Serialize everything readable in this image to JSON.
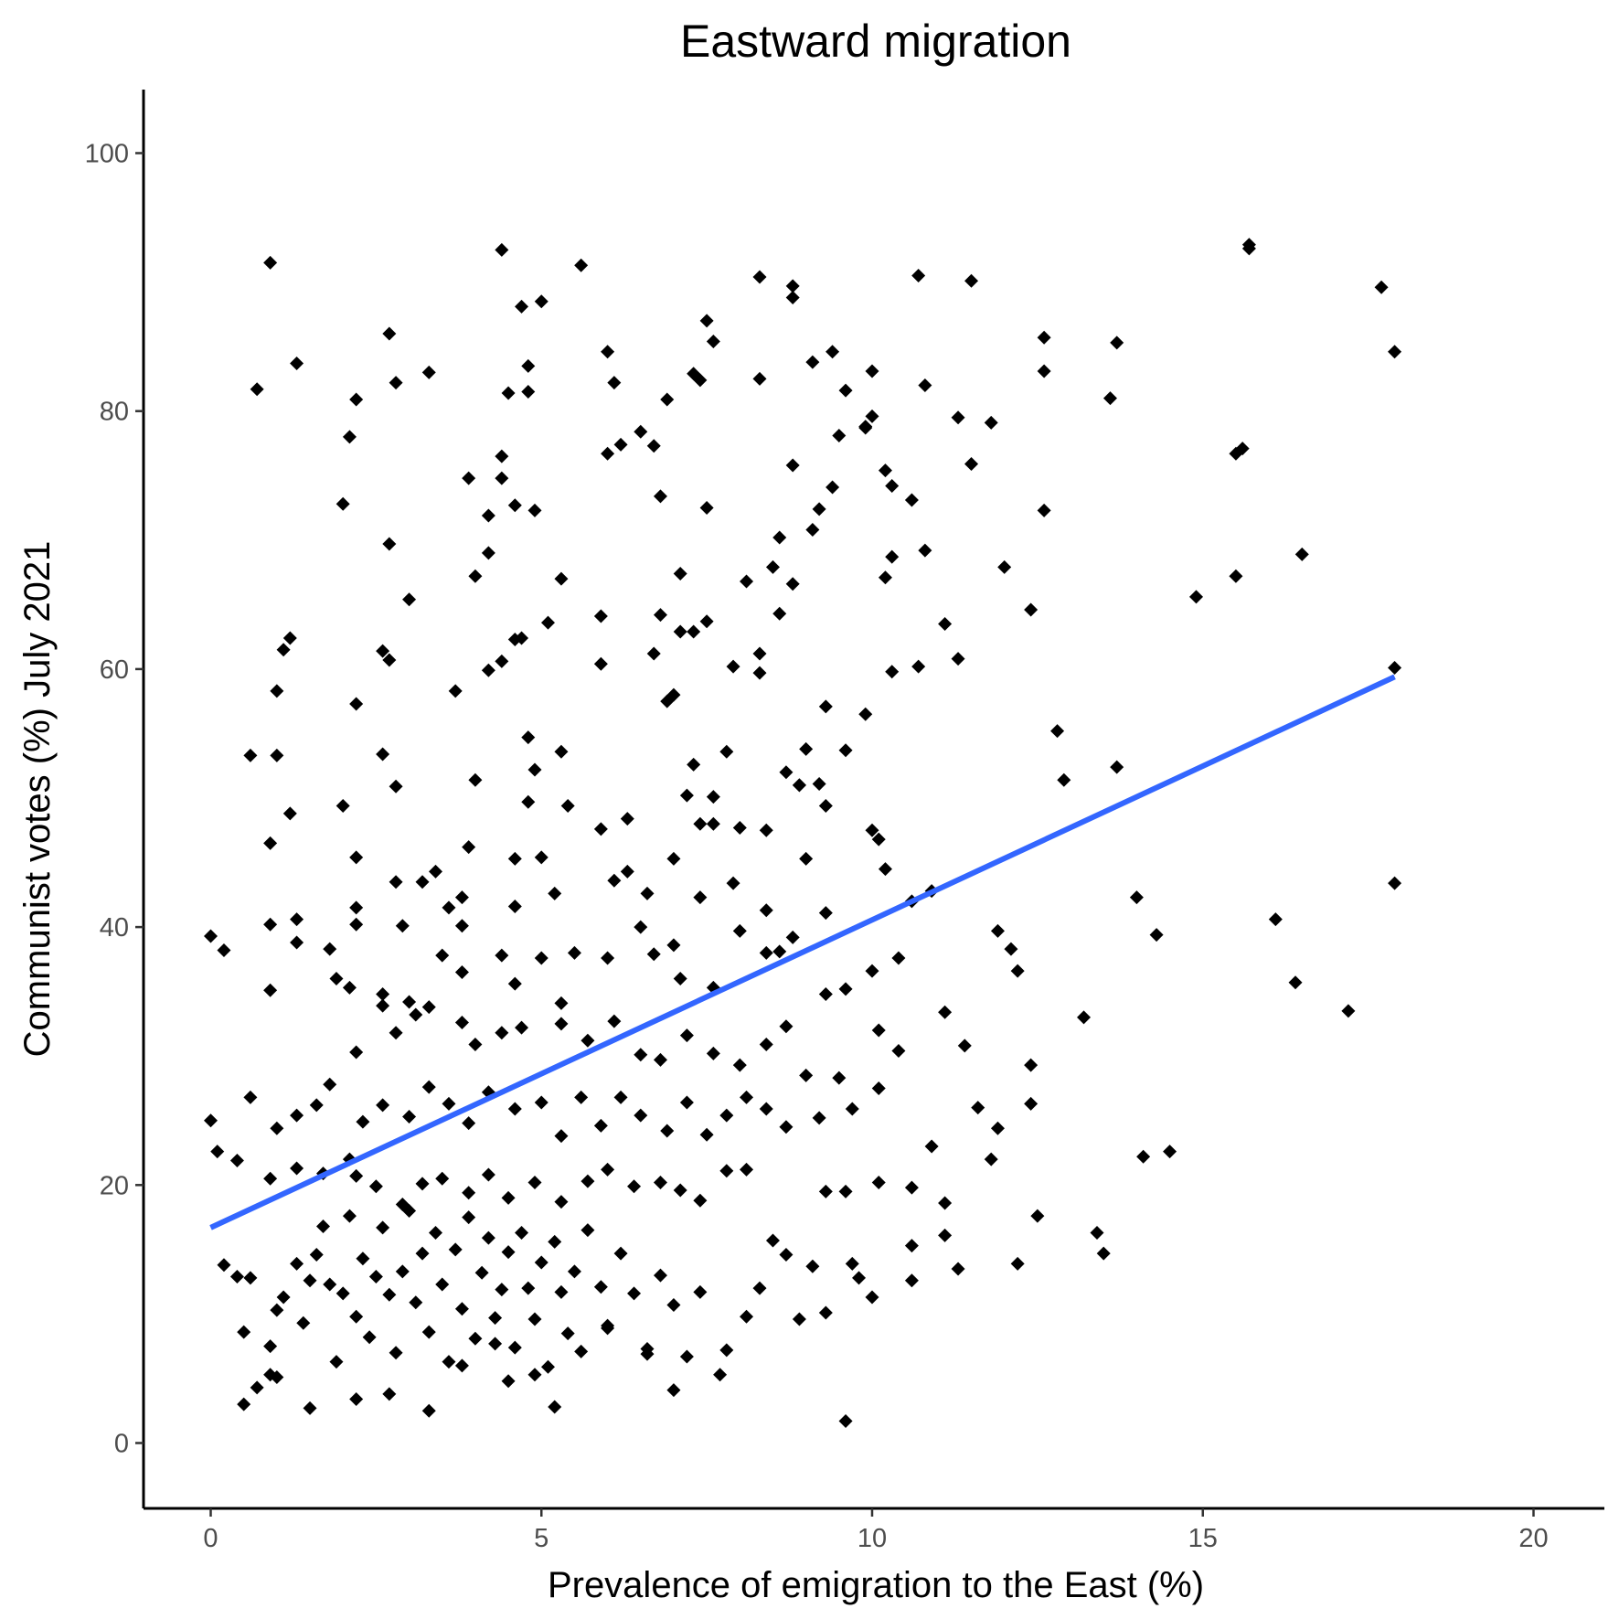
{
  "chart_data": {
    "type": "scatter",
    "title": "Eastward migration",
    "xlabel": "Prevalence of emigration to the East (%)",
    "ylabel": "Communist votes (%) July 2021",
    "xlim": [
      -1,
      21.5
    ],
    "ylim": [
      -5,
      105
    ],
    "x_ticks": [
      0,
      5,
      10,
      15,
      20
    ],
    "y_ticks": [
      0,
      20,
      40,
      60,
      80,
      100
    ],
    "grid": false,
    "legend": "none",
    "point_shape": "diamond",
    "point_color": "#000000",
    "trend_line": {
      "type": "linear",
      "x": [
        0,
        17.9
      ],
      "y": [
        16.7,
        59.4
      ],
      "color": "#3366ff"
    },
    "points": [
      [
        0.9,
        91.5
      ],
      [
        4.4,
        92.5
      ],
      [
        5.6,
        91.3
      ],
      [
        8.3,
        90.4
      ],
      [
        8.8,
        89.7
      ],
      [
        8.8,
        88.8
      ],
      [
        10.7,
        90.5
      ],
      [
        11.5,
        90.1
      ],
      [
        15.7,
        92.9
      ],
      [
        15.7,
        92.6
      ],
      [
        17.7,
        89.6
      ],
      [
        17.9,
        84.6
      ],
      [
        2.7,
        86.0
      ],
      [
        4.7,
        88.1
      ],
      [
        5.0,
        88.5
      ],
      [
        7.5,
        87.0
      ],
      [
        1.3,
        83.7
      ],
      [
        3.3,
        83.0
      ],
      [
        4.8,
        83.5
      ],
      [
        6.0,
        84.6
      ],
      [
        7.3,
        82.9
      ],
      [
        7.6,
        85.4
      ],
      [
        9.1,
        83.8
      ],
      [
        9.4,
        84.6
      ],
      [
        10.0,
        83.1
      ],
      [
        12.6,
        85.7
      ],
      [
        12.6,
        83.1
      ],
      [
        13.7,
        85.3
      ],
      [
        0.7,
        81.7
      ],
      [
        2.2,
        80.9
      ],
      [
        2.8,
        82.2
      ],
      [
        4.5,
        81.4
      ],
      [
        4.8,
        81.5
      ],
      [
        6.1,
        82.2
      ],
      [
        6.5,
        78.4
      ],
      [
        6.9,
        80.9
      ],
      [
        7.4,
        82.4
      ],
      [
        8.3,
        82.5
      ],
      [
        9.6,
        81.6
      ],
      [
        9.5,
        78.1
      ],
      [
        9.9,
        78.8
      ],
      [
        10.8,
        82.0
      ],
      [
        13.6,
        81.0
      ],
      [
        2.1,
        78.0
      ],
      [
        3.9,
        74.8
      ],
      [
        4.4,
        74.8
      ],
      [
        4.4,
        76.5
      ],
      [
        4.6,
        72.7
      ],
      [
        4.9,
        72.3
      ],
      [
        6.0,
        76.7
      ],
      [
        6.2,
        77.4
      ],
      [
        6.7,
        77.3
      ],
      [
        6.8,
        73.4
      ],
      [
        7.5,
        72.5
      ],
      [
        8.6,
        70.2
      ],
      [
        8.8,
        75.8
      ],
      [
        9.2,
        72.4
      ],
      [
        9.4,
        74.1
      ],
      [
        9.9,
        78.7
      ],
      [
        10.0,
        79.6
      ],
      [
        10.2,
        75.4
      ],
      [
        10.3,
        74.2
      ],
      [
        10.6,
        73.1
      ],
      [
        11.3,
        79.5
      ],
      [
        11.5,
        75.9
      ],
      [
        11.8,
        79.1
      ],
      [
        12.6,
        72.3
      ],
      [
        15.5,
        76.7
      ],
      [
        15.6,
        77.1
      ],
      [
        2.0,
        72.8
      ],
      [
        2.7,
        69.7
      ],
      [
        3.0,
        65.4
      ],
      [
        4.0,
        67.2
      ],
      [
        4.2,
        71.9
      ],
      [
        4.2,
        69.0
      ],
      [
        5.3,
        67.0
      ],
      [
        5.9,
        64.1
      ],
      [
        6.8,
        64.2
      ],
      [
        7.1,
        67.4
      ],
      [
        8.1,
        66.8
      ],
      [
        8.5,
        67.9
      ],
      [
        8.8,
        66.6
      ],
      [
        9.1,
        70.8
      ],
      [
        10.2,
        67.1
      ],
      [
        10.3,
        68.7
      ],
      [
        10.8,
        69.2
      ],
      [
        12.0,
        67.9
      ],
      [
        12.4,
        64.6
      ],
      [
        14.9,
        65.6
      ],
      [
        15.5,
        67.2
      ],
      [
        16.5,
        68.9
      ],
      [
        1.1,
        61.5
      ],
      [
        1.2,
        62.4
      ],
      [
        2.6,
        61.4
      ],
      [
        2.7,
        60.7
      ],
      [
        4.2,
        59.9
      ],
      [
        4.4,
        60.6
      ],
      [
        4.6,
        62.3
      ],
      [
        4.7,
        62.4
      ],
      [
        5.1,
        63.6
      ],
      [
        5.9,
        60.4
      ],
      [
        6.7,
        61.2
      ],
      [
        7.1,
        62.9
      ],
      [
        7.3,
        62.9
      ],
      [
        7.5,
        63.7
      ],
      [
        7.9,
        60.2
      ],
      [
        8.3,
        61.2
      ],
      [
        8.3,
        59.7
      ],
      [
        8.6,
        64.3
      ],
      [
        10.3,
        59.8
      ],
      [
        10.7,
        60.2
      ],
      [
        11.1,
        63.5
      ],
      [
        11.3,
        60.8
      ],
      [
        17.9,
        60.1
      ],
      [
        0.6,
        53.3
      ],
      [
        1.0,
        58.3
      ],
      [
        1.0,
        53.3
      ],
      [
        2.2,
        57.3
      ],
      [
        2.6,
        53.4
      ],
      [
        3.7,
        58.3
      ],
      [
        4.0,
        51.4
      ],
      [
        4.8,
        54.7
      ],
      [
        4.9,
        52.2
      ],
      [
        5.3,
        53.6
      ],
      [
        6.9,
        57.5
      ],
      [
        7.0,
        58.0
      ],
      [
        7.3,
        52.6
      ],
      [
        7.8,
        53.6
      ],
      [
        8.7,
        52.0
      ],
      [
        8.9,
        51.0
      ],
      [
        9.0,
        53.8
      ],
      [
        9.2,
        51.1
      ],
      [
        9.3,
        57.1
      ],
      [
        9.6,
        53.7
      ],
      [
        9.9,
        56.5
      ],
      [
        12.8,
        55.2
      ],
      [
        0.9,
        46.5
      ],
      [
        1.2,
        48.8
      ],
      [
        2.0,
        49.4
      ],
      [
        2.2,
        45.4
      ],
      [
        2.8,
        50.9
      ],
      [
        3.2,
        43.5
      ],
      [
        3.4,
        44.3
      ],
      [
        3.9,
        46.2
      ],
      [
        4.6,
        45.3
      ],
      [
        4.8,
        49.7
      ],
      [
        5.0,
        45.4
      ],
      [
        5.4,
        49.4
      ],
      [
        5.9,
        47.6
      ],
      [
        6.3,
        48.4
      ],
      [
        7.0,
        45.3
      ],
      [
        7.2,
        50.2
      ],
      [
        7.4,
        48.0
      ],
      [
        7.6,
        50.1
      ],
      [
        7.6,
        48.0
      ],
      [
        8.0,
        47.7
      ],
      [
        8.4,
        47.5
      ],
      [
        8.9,
        51.0
      ],
      [
        9.0,
        45.3
      ],
      [
        9.3,
        49.4
      ],
      [
        10.0,
        47.5
      ],
      [
        10.1,
        46.8
      ],
      [
        10.2,
        44.5
      ],
      [
        12.9,
        51.4
      ],
      [
        13.7,
        52.4
      ],
      [
        0.0,
        39.3
      ],
      [
        0.2,
        38.2
      ],
      [
        0.9,
        40.2
      ],
      [
        1.3,
        40.6
      ],
      [
        1.3,
        38.8
      ],
      [
        2.2,
        40.2
      ],
      [
        2.2,
        41.5
      ],
      [
        2.8,
        43.5
      ],
      [
        2.9,
        40.1
      ],
      [
        3.6,
        41.5
      ],
      [
        3.8,
        42.3
      ],
      [
        3.8,
        40.1
      ],
      [
        4.4,
        37.8
      ],
      [
        4.6,
        41.6
      ],
      [
        5.2,
        42.6
      ],
      [
        6.1,
        43.6
      ],
      [
        6.3,
        44.3
      ],
      [
        6.6,
        42.6
      ],
      [
        6.5,
        40.0
      ],
      [
        7.4,
        42.3
      ],
      [
        7.9,
        43.4
      ],
      [
        8.4,
        41.3
      ],
      [
        9.3,
        41.1
      ],
      [
        10.6,
        42.0
      ],
      [
        10.9,
        42.8
      ],
      [
        11.9,
        39.7
      ],
      [
        12.1,
        38.3
      ],
      [
        14.0,
        42.3
      ],
      [
        14.3,
        39.4
      ],
      [
        16.1,
        40.6
      ],
      [
        17.9,
        43.4
      ],
      [
        0.9,
        35.1
      ],
      [
        1.8,
        38.3
      ],
      [
        1.9,
        36.0
      ],
      [
        2.1,
        35.3
      ],
      [
        2.6,
        34.8
      ],
      [
        2.6,
        33.9
      ],
      [
        3.0,
        34.2
      ],
      [
        3.5,
        37.8
      ],
      [
        3.8,
        36.5
      ],
      [
        4.6,
        35.6
      ],
      [
        5.0,
        37.6
      ],
      [
        5.3,
        34.1
      ],
      [
        5.5,
        38.0
      ],
      [
        6.0,
        37.6
      ],
      [
        6.7,
        37.9
      ],
      [
        7.0,
        38.6
      ],
      [
        7.1,
        36.0
      ],
      [
        7.6,
        35.3
      ],
      [
        8.0,
        39.7
      ],
      [
        8.4,
        38.0
      ],
      [
        8.6,
        38.1
      ],
      [
        8.8,
        39.2
      ],
      [
        9.3,
        34.8
      ],
      [
        9.6,
        35.2
      ],
      [
        10.0,
        36.6
      ],
      [
        10.4,
        37.6
      ],
      [
        12.2,
        36.6
      ],
      [
        16.4,
        35.7
      ],
      [
        17.2,
        33.5
      ],
      [
        1.8,
        27.8
      ],
      [
        2.2,
        30.3
      ],
      [
        2.8,
        31.8
      ],
      [
        3.1,
        33.2
      ],
      [
        3.3,
        33.8
      ],
      [
        3.8,
        32.6
      ],
      [
        4.0,
        30.9
      ],
      [
        4.4,
        31.8
      ],
      [
        4.7,
        32.2
      ],
      [
        5.3,
        32.5
      ],
      [
        5.7,
        31.2
      ],
      [
        6.1,
        32.7
      ],
      [
        6.5,
        30.1
      ],
      [
        6.8,
        29.7
      ],
      [
        7.2,
        31.6
      ],
      [
        7.6,
        30.2
      ],
      [
        8.0,
        29.3
      ],
      [
        8.4,
        30.9
      ],
      [
        8.7,
        32.3
      ],
      [
        9.0,
        28.5
      ],
      [
        9.5,
        28.3
      ],
      [
        10.1,
        32.0
      ],
      [
        10.4,
        30.4
      ],
      [
        11.1,
        33.4
      ],
      [
        11.4,
        30.8
      ],
      [
        12.4,
        29.3
      ],
      [
        13.2,
        33.0
      ],
      [
        0.0,
        25.0
      ],
      [
        0.1,
        22.6
      ],
      [
        0.4,
        21.9
      ],
      [
        0.6,
        26.8
      ],
      [
        1.0,
        24.4
      ],
      [
        1.3,
        25.4
      ],
      [
        1.6,
        26.2
      ],
      [
        2.1,
        22.0
      ],
      [
        2.3,
        24.9
      ],
      [
        2.6,
        26.2
      ],
      [
        3.0,
        25.3
      ],
      [
        3.3,
        27.6
      ],
      [
        3.6,
        26.3
      ],
      [
        3.9,
        24.8
      ],
      [
        4.2,
        27.2
      ],
      [
        4.6,
        25.9
      ],
      [
        5.0,
        26.4
      ],
      [
        5.3,
        23.8
      ],
      [
        5.6,
        26.8
      ],
      [
        5.9,
        24.6
      ],
      [
        6.2,
        26.8
      ],
      [
        6.5,
        25.4
      ],
      [
        6.9,
        24.2
      ],
      [
        7.2,
        26.4
      ],
      [
        7.5,
        23.9
      ],
      [
        7.8,
        25.4
      ],
      [
        8.1,
        26.8
      ],
      [
        8.4,
        25.9
      ],
      [
        8.7,
        24.5
      ],
      [
        9.2,
        25.2
      ],
      [
        9.7,
        25.9
      ],
      [
        10.1,
        27.5
      ],
      [
        10.9,
        23.0
      ],
      [
        11.6,
        26.0
      ],
      [
        11.9,
        24.4
      ],
      [
        12.4,
        26.3
      ],
      [
        14.1,
        22.2
      ],
      [
        14.5,
        22.6
      ],
      [
        0.9,
        20.5
      ],
      [
        1.3,
        21.3
      ],
      [
        1.7,
        20.9
      ],
      [
        2.2,
        20.7
      ],
      [
        2.5,
        19.9
      ],
      [
        2.9,
        18.5
      ],
      [
        3.2,
        20.1
      ],
      [
        3.5,
        20.5
      ],
      [
        3.9,
        19.4
      ],
      [
        4.2,
        20.8
      ],
      [
        4.5,
        19.0
      ],
      [
        4.9,
        20.2
      ],
      [
        5.3,
        18.7
      ],
      [
        5.7,
        20.3
      ],
      [
        6.0,
        21.2
      ],
      [
        6.4,
        19.9
      ],
      [
        6.8,
        20.2
      ],
      [
        7.1,
        19.6
      ],
      [
        7.4,
        18.8
      ],
      [
        7.8,
        21.1
      ],
      [
        8.1,
        21.2
      ],
      [
        9.3,
        19.5
      ],
      [
        9.6,
        19.5
      ],
      [
        10.1,
        20.2
      ],
      [
        10.6,
        19.8
      ],
      [
        11.1,
        18.6
      ],
      [
        11.8,
        22.0
      ],
      [
        12.5,
        17.6
      ],
      [
        0.2,
        13.8
      ],
      [
        0.4,
        12.9
      ],
      [
        0.5,
        8.6
      ],
      [
        0.6,
        12.8
      ],
      [
        0.9,
        7.5
      ],
      [
        0.9,
        5.3
      ],
      [
        1.0,
        10.3
      ],
      [
        1.1,
        11.3
      ],
      [
        1.3,
        13.9
      ],
      [
        1.4,
        9.3
      ],
      [
        1.5,
        12.6
      ],
      [
        1.6,
        14.6
      ],
      [
        1.7,
        16.8
      ],
      [
        1.8,
        12.3
      ],
      [
        1.9,
        6.3
      ],
      [
        2.0,
        11.6
      ],
      [
        2.1,
        17.6
      ],
      [
        2.2,
        9.8
      ],
      [
        2.3,
        14.3
      ],
      [
        2.4,
        8.2
      ],
      [
        2.5,
        12.9
      ],
      [
        2.6,
        16.7
      ],
      [
        2.7,
        11.5
      ],
      [
        2.8,
        7.0
      ],
      [
        2.9,
        13.3
      ],
      [
        3.0,
        18.0
      ],
      [
        3.1,
        10.9
      ],
      [
        3.2,
        14.7
      ],
      [
        3.3,
        8.6
      ],
      [
        3.4,
        16.3
      ],
      [
        3.5,
        12.3
      ],
      [
        3.6,
        6.3
      ],
      [
        3.7,
        15.0
      ],
      [
        3.8,
        10.4
      ],
      [
        3.9,
        17.5
      ],
      [
        4.0,
        8.1
      ],
      [
        4.1,
        13.2
      ],
      [
        4.2,
        15.9
      ],
      [
        4.3,
        9.7
      ],
      [
        4.4,
        11.9
      ],
      [
        4.5,
        14.8
      ],
      [
        4.6,
        7.4
      ],
      [
        4.7,
        16.3
      ],
      [
        4.8,
        12.0
      ],
      [
        4.9,
        9.6
      ],
      [
        5.0,
        14.0
      ],
      [
        5.1,
        5.9
      ],
      [
        5.2,
        15.6
      ],
      [
        5.3,
        11.7
      ],
      [
        5.4,
        8.5
      ],
      [
        5.5,
        13.3
      ],
      [
        5.7,
        16.5
      ],
      [
        5.9,
        12.1
      ],
      [
        6.0,
        9.1
      ],
      [
        6.2,
        14.7
      ],
      [
        6.4,
        11.6
      ],
      [
        6.6,
        7.3
      ],
      [
        6.8,
        13.0
      ],
      [
        7.0,
        10.7
      ],
      [
        7.2,
        6.7
      ],
      [
        7.4,
        11.7
      ],
      [
        7.8,
        7.2
      ],
      [
        8.1,
        9.8
      ],
      [
        8.3,
        12.0
      ],
      [
        8.5,
        15.7
      ],
      [
        8.7,
        14.6
      ],
      [
        8.9,
        9.6
      ],
      [
        9.1,
        13.7
      ],
      [
        9.3,
        10.1
      ],
      [
        9.7,
        13.9
      ],
      [
        9.8,
        12.8
      ],
      [
        10.0,
        11.3
      ],
      [
        10.6,
        12.6
      ],
      [
        10.6,
        15.3
      ],
      [
        11.1,
        16.1
      ],
      [
        11.3,
        13.5
      ],
      [
        12.2,
        13.9
      ],
      [
        13.4,
        16.3
      ],
      [
        13.5,
        14.7
      ],
      [
        0.5,
        3.0
      ],
      [
        0.7,
        4.3
      ],
      [
        1.0,
        5.1
      ],
      [
        1.5,
        2.7
      ],
      [
        2.2,
        3.4
      ],
      [
        2.7,
        3.8
      ],
      [
        3.3,
        2.5
      ],
      [
        3.8,
        6.0
      ],
      [
        4.3,
        7.7
      ],
      [
        4.5,
        4.8
      ],
      [
        4.9,
        5.3
      ],
      [
        5.2,
        2.8
      ],
      [
        5.6,
        7.1
      ],
      [
        6.0,
        8.9
      ],
      [
        6.6,
        6.9
      ],
      [
        7.0,
        4.1
      ],
      [
        7.7,
        5.3
      ],
      [
        9.6,
        1.7
      ]
    ]
  }
}
